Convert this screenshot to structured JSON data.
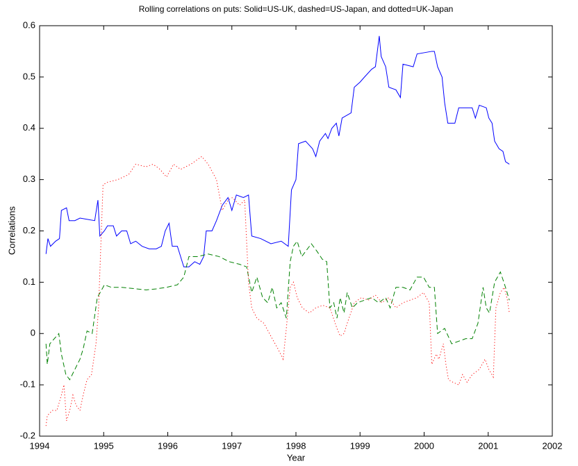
{
  "chart_data": {
    "type": "line",
    "title": "Rolling correlations on puts: Solid=US-UK, dashed=US-Japan, and dotted=UK-Japan",
    "xlabel": "Year",
    "ylabel": "Correlations",
    "xlim": [
      1994,
      2002
    ],
    "xticks": [
      1994,
      1995,
      1996,
      1997,
      1998,
      1999,
      2000,
      2001,
      2002
    ],
    "ylim": [
      -0.2,
      0.6
    ],
    "yticks": [
      -0.2,
      -0.1,
      0,
      0.1,
      0.2,
      0.3,
      0.4,
      0.5,
      0.6
    ],
    "grid": false,
    "series": [
      {
        "color": "#0000ff",
        "style": "solid",
        "x": [
          1994.1,
          1994.13,
          1994.17,
          1994.25,
          1994.31,
          1994.34,
          1994.42,
          1994.46,
          1994.55,
          1994.63,
          1994.86,
          1994.91,
          1994.94,
          1995.01,
          1995.06,
          1995.15,
          1995.2,
          1995.28,
          1995.36,
          1995.42,
          1995.5,
          1995.6,
          1995.71,
          1995.82,
          1995.9,
          1995.96,
          1996.02,
          1996.07,
          1996.15,
          1996.25,
          1996.33,
          1996.42,
          1996.5,
          1996.56,
          1996.6,
          1996.69,
          1996.76,
          1996.85,
          1996.94,
          1997.0,
          1997.07,
          1997.18,
          1997.26,
          1997.31,
          1997.45,
          1997.61,
          1997.77,
          1997.88,
          1997.93,
          1998.0,
          1998.04,
          1998.15,
          1998.26,
          1998.31,
          1998.37,
          1998.46,
          1998.5,
          1998.56,
          1998.63,
          1998.67,
          1998.72,
          1998.86,
          1998.91,
          1999.0,
          1999.07,
          1999.18,
          1999.24,
          1999.3,
          1999.33,
          1999.4,
          1999.45,
          1999.56,
          1999.63,
          1999.67,
          1999.83,
          1999.89,
          2000.12,
          2000.16,
          2000.21,
          2000.28,
          2000.32,
          2000.37,
          2000.48,
          2000.54,
          2000.75,
          2000.8,
          2000.86,
          2000.97,
          2001.01,
          2001.06,
          2001.1,
          2001.17,
          2001.23,
          2001.27,
          2001.33
        ],
        "values": [
          0.155,
          0.185,
          0.17,
          0.18,
          0.185,
          0.24,
          0.245,
          0.22,
          0.22,
          0.225,
          0.22,
          0.26,
          0.19,
          0.2,
          0.21,
          0.21,
          0.19,
          0.2,
          0.2,
          0.175,
          0.18,
          0.17,
          0.165,
          0.165,
          0.17,
          0.2,
          0.215,
          0.17,
          0.17,
          0.13,
          0.13,
          0.14,
          0.135,
          0.15,
          0.2,
          0.2,
          0.22,
          0.25,
          0.265,
          0.24,
          0.27,
          0.265,
          0.27,
          0.19,
          0.185,
          0.175,
          0.18,
          0.17,
          0.28,
          0.3,
          0.37,
          0.375,
          0.36,
          0.345,
          0.375,
          0.39,
          0.38,
          0.4,
          0.41,
          0.385,
          0.42,
          0.43,
          0.48,
          0.49,
          0.5,
          0.515,
          0.52,
          0.58,
          0.54,
          0.52,
          0.48,
          0.475,
          0.46,
          0.525,
          0.52,
          0.545,
          0.55,
          0.55,
          0.52,
          0.5,
          0.45,
          0.41,
          0.41,
          0.44,
          0.44,
          0.42,
          0.445,
          0.44,
          0.42,
          0.41,
          0.375,
          0.36,
          0.355,
          0.335,
          0.33
        ]
      },
      {
        "color": "#008000",
        "style": "dashed",
        "x": [
          1994.1,
          1994.12,
          1994.16,
          1994.23,
          1994.3,
          1994.34,
          1994.41,
          1994.47,
          1994.55,
          1994.63,
          1994.68,
          1994.74,
          1994.82,
          1994.9,
          1994.99,
          1995.01,
          1995.12,
          1995.28,
          1995.44,
          1995.66,
          1995.82,
          1995.98,
          1996.15,
          1996.25,
          1996.33,
          1996.47,
          1996.63,
          1996.8,
          1996.96,
          1997.12,
          1997.23,
          1997.31,
          1997.39,
          1997.48,
          1997.56,
          1997.63,
          1997.7,
          1997.77,
          1997.85,
          1997.91,
          1997.96,
          1998.02,
          1998.09,
          1998.15,
          1998.24,
          1998.33,
          1998.41,
          1998.48,
          1998.53,
          1998.59,
          1998.64,
          1998.69,
          1998.75,
          1998.8,
          1998.88,
          1998.96,
          1999.07,
          1999.18,
          1999.29,
          1999.4,
          1999.47,
          1999.56,
          1999.67,
          1999.78,
          1999.89,
          1999.99,
          2000.08,
          2000.16,
          2000.21,
          2000.32,
          2000.43,
          2000.54,
          2000.65,
          2000.75,
          2000.84,
          2000.92,
          2000.97,
          2001.02,
          2001.1,
          2001.19,
          2001.27,
          2001.33
        ],
        "values": [
          -0.02,
          -0.06,
          -0.02,
          -0.01,
          0,
          -0.04,
          -0.08,
          -0.09,
          -0.07,
          -0.05,
          -0.03,
          0.005,
          0,
          0.07,
          0.09,
          0.095,
          0.09,
          0.09,
          0.088,
          0.085,
          0.087,
          0.09,
          0.095,
          0.11,
          0.15,
          0.15,
          0.155,
          0.15,
          0.14,
          0.135,
          0.13,
          0.08,
          0.11,
          0.07,
          0.06,
          0.09,
          0.05,
          0.06,
          0.03,
          0.14,
          0.17,
          0.18,
          0.15,
          0.16,
          0.175,
          0.16,
          0.145,
          0.14,
          0.05,
          0.06,
          0.03,
          0.07,
          0.04,
          0.08,
          0.05,
          0.06,
          0.065,
          0.07,
          0.06,
          0.07,
          0.05,
          0.09,
          0.09,
          0.085,
          0.11,
          0.11,
          0.09,
          0.09,
          0,
          0.01,
          -0.02,
          -0.015,
          -0.01,
          -0.01,
          0.02,
          0.09,
          0.05,
          0.04,
          0.1,
          0.12,
          0.09,
          0.065
        ]
      },
      {
        "color": "#ff0000",
        "style": "dotted",
        "x": [
          1994.1,
          1994.12,
          1994.2,
          1994.27,
          1994.34,
          1994.38,
          1994.42,
          1994.47,
          1994.52,
          1994.57,
          1994.63,
          1994.68,
          1994.74,
          1994.81,
          1994.88,
          1994.92,
          1994.99,
          1995.06,
          1995.22,
          1995.39,
          1995.5,
          1995.66,
          1995.77,
          1995.88,
          1995.98,
          1996.09,
          1996.2,
          1996.36,
          1996.53,
          1996.63,
          1996.76,
          1996.85,
          1996.94,
          1997.01,
          1997.12,
          1997.2,
          1997.26,
          1997.31,
          1997.39,
          1997.5,
          1997.63,
          1997.72,
          1997.8,
          1997.85,
          1997.91,
          1997.96,
          1998.02,
          1998.1,
          1998.21,
          1998.31,
          1998.42,
          1998.53,
          1998.64,
          1998.69,
          1998.75,
          1998.8,
          1998.91,
          1999.02,
          1999.13,
          1999.24,
          1999.34,
          1999.45,
          1999.56,
          1999.67,
          1999.78,
          1999.89,
          1999.99,
          2000.08,
          2000.12,
          2000.19,
          2000.23,
          2000.3,
          2000.34,
          2000.38,
          2000.45,
          2000.54,
          2000.6,
          2000.67,
          2000.75,
          2000.86,
          2000.95,
          2001.01,
          2001.08,
          2001.12,
          2001.19,
          2001.25,
          2001.3,
          2001.33
        ],
        "values": [
          -0.18,
          -0.16,
          -0.15,
          -0.15,
          -0.12,
          -0.1,
          -0.17,
          -0.15,
          -0.12,
          -0.14,
          -0.15,
          -0.12,
          -0.09,
          -0.08,
          -0.02,
          0.05,
          0.29,
          0.295,
          0.3,
          0.31,
          0.33,
          0.325,
          0.33,
          0.32,
          0.305,
          0.33,
          0.32,
          0.33,
          0.345,
          0.33,
          0.3,
          0.24,
          0.26,
          0.265,
          0.25,
          0.26,
          0.1,
          0.05,
          0.03,
          0.02,
          -0.01,
          -0.03,
          -0.05,
          0.01,
          0.09,
          0.1,
          0.07,
          0.05,
          0.04,
          0.05,
          0.055,
          0.05,
          0.01,
          -0.005,
          0,
          0.02,
          0.06,
          0.07,
          0.065,
          0.075,
          0.06,
          0.07,
          0.05,
          0.06,
          0.065,
          0.07,
          0.08,
          0.06,
          -0.06,
          -0.04,
          -0.05,
          -0.02,
          -0.06,
          -0.09,
          -0.095,
          -0.1,
          -0.08,
          -0.095,
          -0.08,
          -0.07,
          -0.05,
          -0.07,
          -0.085,
          0.05,
          0.08,
          0.09,
          0.065,
          0.04
        ]
      }
    ]
  }
}
